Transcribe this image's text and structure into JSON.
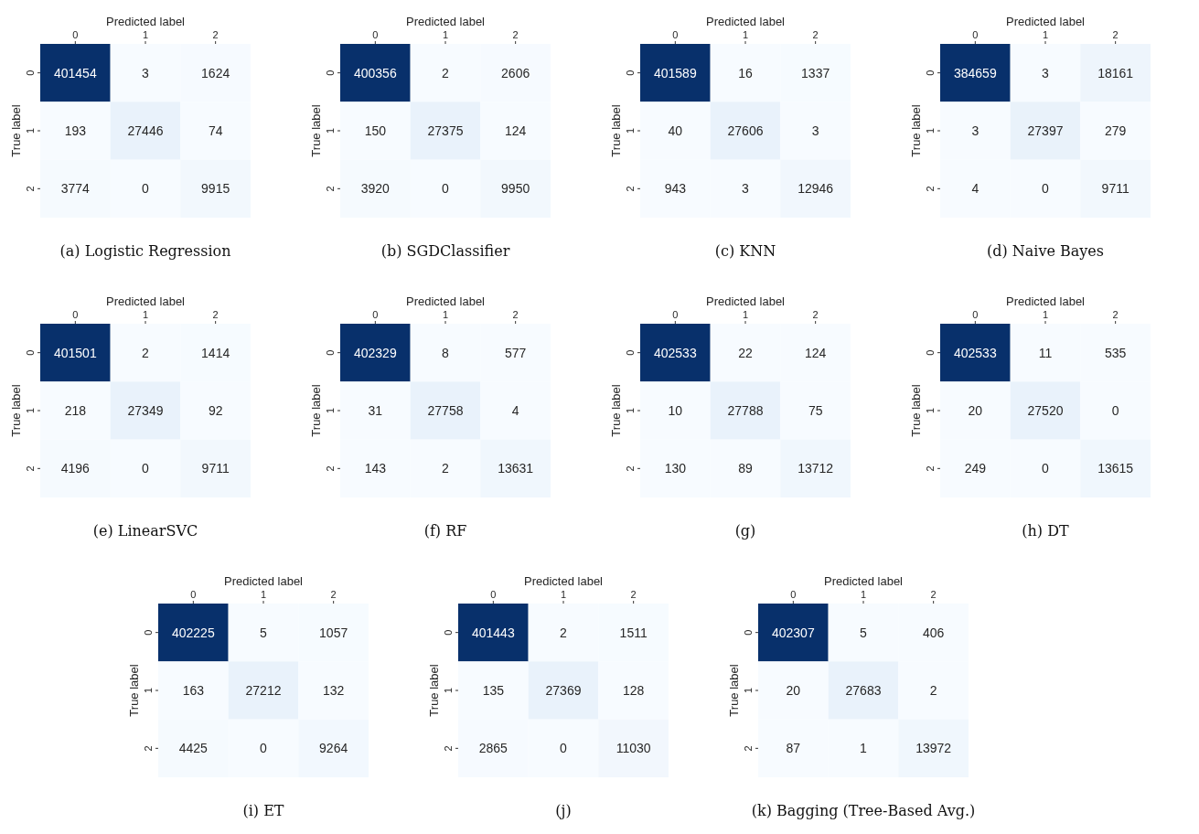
{
  "chart_data": [
    {
      "type": "heatmap",
      "title": "(a) Logistic Regression",
      "xlabel": "Predicted label",
      "ylabel": "True label",
      "categories": [
        "0",
        "1",
        "2"
      ],
      "y_categories": [
        "0",
        "1",
        "2"
      ],
      "data_labels": true,
      "cells": [
        [
          401454,
          3,
          1624
        ],
        [
          193,
          27446,
          74
        ],
        [
          3774,
          0,
          9915
        ]
      ]
    },
    {
      "type": "heatmap",
      "title": "(b) SGDClassifier",
      "xlabel": "Predicted label",
      "ylabel": "True label",
      "categories": [
        "0",
        "1",
        "2"
      ],
      "y_categories": [
        "0",
        "1",
        "2"
      ],
      "data_labels": true,
      "cells": [
        [
          400356,
          2,
          2606
        ],
        [
          150,
          27375,
          124
        ],
        [
          3920,
          0,
          9950
        ]
      ]
    },
    {
      "type": "heatmap",
      "title": "(c) KNN",
      "xlabel": "Predicted label",
      "ylabel": "True label",
      "categories": [
        "0",
        "1",
        "2"
      ],
      "y_categories": [
        "0",
        "1",
        "2"
      ],
      "data_labels": true,
      "cells": [
        [
          401589,
          16,
          1337
        ],
        [
          40,
          27606,
          3
        ],
        [
          943,
          3,
          12946
        ]
      ]
    },
    {
      "type": "heatmap",
      "title": "(d) Naive Bayes",
      "xlabel": "Predicted label",
      "ylabel": "True label",
      "categories": [
        "0",
        "1",
        "2"
      ],
      "y_categories": [
        "0",
        "1",
        "2"
      ],
      "data_labels": true,
      "cells": [
        [
          384659,
          3,
          18161
        ],
        [
          3,
          27397,
          279
        ],
        [
          4,
          0,
          9711
        ]
      ]
    },
    {
      "type": "heatmap",
      "title": "(e) LinearSVC",
      "xlabel": "Predicted label",
      "ylabel": "True label",
      "categories": [
        "0",
        "1",
        "2"
      ],
      "y_categories": [
        "0",
        "1",
        "2"
      ],
      "data_labels": true,
      "cells": [
        [
          401501,
          2,
          1414
        ],
        [
          218,
          27349,
          92
        ],
        [
          4196,
          0,
          9711
        ]
      ]
    },
    {
      "type": "heatmap",
      "title": "(f) RF",
      "xlabel": "Predicted label",
      "ylabel": "True label",
      "categories": [
        "0",
        "1",
        "2"
      ],
      "y_categories": [
        "0",
        "1",
        "2"
      ],
      "data_labels": true,
      "cells": [
        [
          402329,
          8,
          577
        ],
        [
          31,
          27758,
          4
        ],
        [
          143,
          2,
          13631
        ]
      ]
    },
    {
      "type": "heatmap",
      "title": "(g)",
      "xlabel": "Predicted label",
      "ylabel": "True label",
      "categories": [
        "0",
        "1",
        "2"
      ],
      "y_categories": [
        "0",
        "1",
        "2"
      ],
      "data_labels": true,
      "cells": [
        [
          402533,
          22,
          124
        ],
        [
          10,
          27788,
          75
        ],
        [
          130,
          89,
          13712
        ]
      ]
    },
    {
      "type": "heatmap",
      "title": "(h) DT",
      "xlabel": "Predicted label",
      "ylabel": "True label",
      "categories": [
        "0",
        "1",
        "2"
      ],
      "y_categories": [
        "0",
        "1",
        "2"
      ],
      "data_labels": true,
      "cells": [
        [
          402533,
          11,
          535
        ],
        [
          20,
          27520,
          0
        ],
        [
          249,
          0,
          13615
        ]
      ]
    },
    {
      "type": "heatmap",
      "title": "(i) ET",
      "xlabel": "Predicted label",
      "ylabel": "True label",
      "categories": [
        "0",
        "1",
        "2"
      ],
      "y_categories": [
        "0",
        "1",
        "2"
      ],
      "data_labels": true,
      "cells": [
        [
          402225,
          5,
          1057
        ],
        [
          163,
          27212,
          132
        ],
        [
          4425,
          0,
          9264
        ]
      ]
    },
    {
      "type": "heatmap",
      "title": "(j)",
      "xlabel": "Predicted label",
      "ylabel": "True label",
      "categories": [
        "0",
        "1",
        "2"
      ],
      "y_categories": [
        "0",
        "1",
        "2"
      ],
      "data_labels": true,
      "cells": [
        [
          401443,
          2,
          1511
        ],
        [
          135,
          27369,
          128
        ],
        [
          2865,
          0,
          11030
        ]
      ]
    },
    {
      "type": "heatmap",
      "title": "(k) Bagging (Tree-Based Avg.)",
      "xlabel": "Predicted label",
      "ylabel": "True label",
      "categories": [
        "0",
        "1",
        "2"
      ],
      "y_categories": [
        "0",
        "1",
        "2"
      ],
      "data_labels": true,
      "cells": [
        [
          402307,
          5,
          406
        ],
        [
          20,
          27683,
          2
        ],
        [
          87,
          1,
          13972
        ]
      ]
    }
  ]
}
